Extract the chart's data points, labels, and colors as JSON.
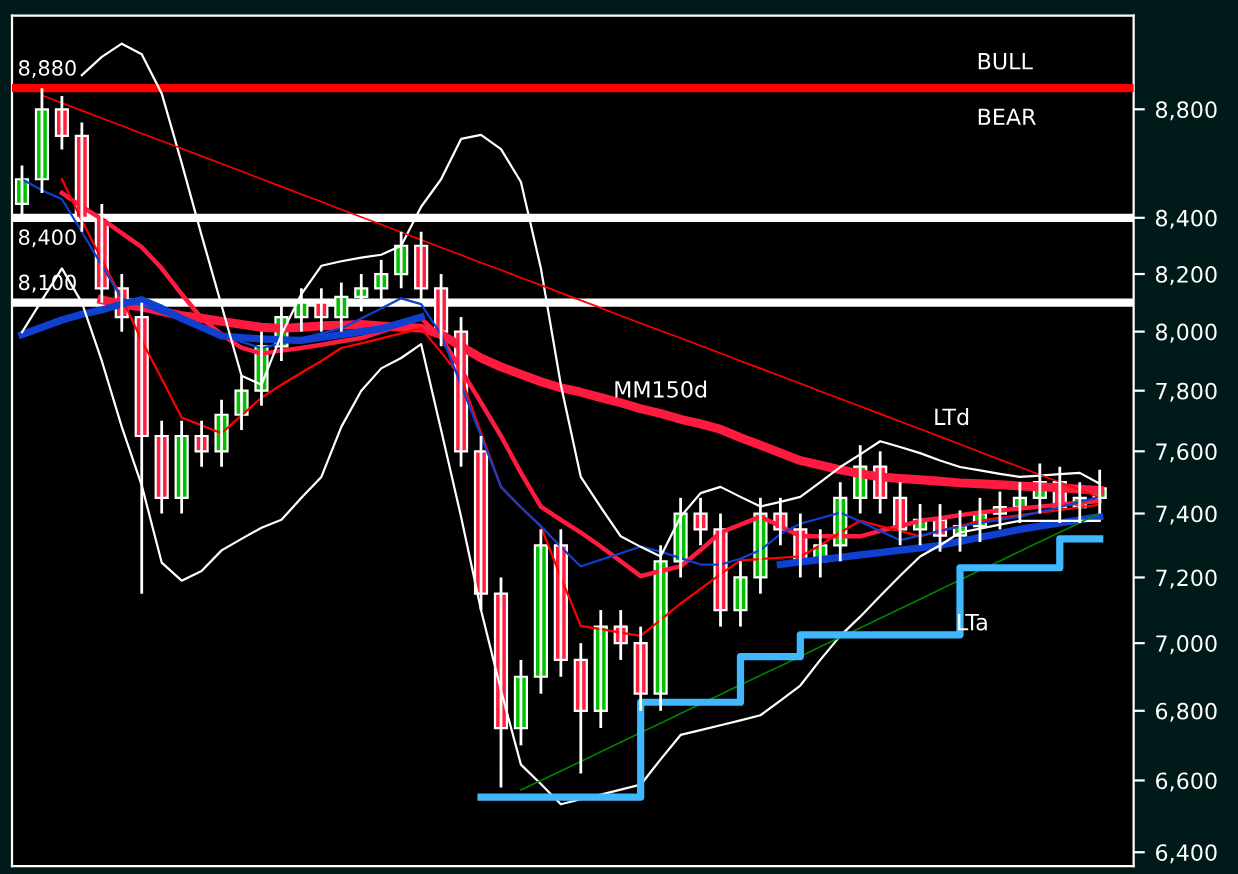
{
  "chart_data": {
    "type": "candlestick",
    "log": "y",
    "grid": false,
    "categories": [
      null,
      null,
      null,
      null,
      null,
      null,
      null,
      null,
      null,
      null,
      null,
      null,
      null,
      null,
      null,
      null,
      null,
      null,
      null,
      null,
      null,
      null,
      null,
      null,
      null,
      null,
      null,
      null,
      null,
      null,
      null,
      null,
      null,
      null,
      null,
      null,
      null,
      null,
      null,
      null,
      null,
      null,
      null,
      null,
      null,
      null,
      null,
      null,
      null,
      null,
      null,
      null,
      null,
      null,
      null
    ],
    "ohlc": [
      [
        8450,
        8590,
        8400,
        8540
      ],
      [
        8540,
        8880,
        8490,
        8800
      ],
      [
        8800,
        8850,
        8650,
        8700
      ],
      [
        8700,
        8750,
        8350,
        8400
      ],
      [
        8400,
        8450,
        8100,
        8150
      ],
      [
        8150,
        8200,
        8000,
        8050
      ],
      [
        8050,
        8100,
        7150,
        7650
      ],
      [
        7650,
        7700,
        7400,
        7450
      ],
      [
        7450,
        7700,
        7400,
        7650
      ],
      [
        7650,
        7700,
        7550,
        7600
      ],
      [
        7600,
        7770,
        7550,
        7720
      ],
      [
        7720,
        7850,
        7670,
        7800
      ],
      [
        7800,
        8000,
        7750,
        7950
      ],
      [
        7950,
        8100,
        7900,
        8050
      ],
      [
        8050,
        8150,
        8000,
        8100
      ],
      [
        8100,
        8150,
        8000,
        8050
      ],
      [
        8050,
        8170,
        8000,
        8120
      ],
      [
        8120,
        8200,
        8070,
        8150
      ],
      [
        8150,
        8250,
        8100,
        8200
      ],
      [
        8200,
        8350,
        8150,
        8300
      ],
      [
        8300,
        8350,
        8100,
        8150
      ],
      [
        8150,
        8200,
        7950,
        8000
      ],
      [
        8000,
        8050,
        7550,
        7600
      ],
      [
        7600,
        7650,
        7100,
        7150
      ],
      [
        7150,
        7200,
        6580,
        6750
      ],
      [
        6750,
        6950,
        6700,
        6900
      ],
      [
        6900,
        7350,
        6850,
        7300
      ],
      [
        7300,
        7350,
        6900,
        6950
      ],
      [
        6950,
        7000,
        6620,
        6800
      ],
      [
        6800,
        7100,
        6750,
        7050
      ],
      [
        7050,
        7100,
        6950,
        7000
      ],
      [
        7000,
        7050,
        6800,
        6850
      ],
      [
        6850,
        7300,
        6800,
        7250
      ],
      [
        7250,
        7450,
        7200,
        7400
      ],
      [
        7400,
        7450,
        7300,
        7350
      ],
      [
        7350,
        7400,
        7050,
        7100
      ],
      [
        7100,
        7250,
        7050,
        7200
      ],
      [
        7200,
        7450,
        7150,
        7400
      ],
      [
        7400,
        7450,
        7300,
        7350
      ],
      [
        7350,
        7400,
        7200,
        7250
      ],
      [
        7250,
        7350,
        7200,
        7300
      ],
      [
        7300,
        7500,
        7250,
        7450
      ],
      [
        7450,
        7620,
        7400,
        7550
      ],
      [
        7550,
        7600,
        7400,
        7450
      ],
      [
        7450,
        7500,
        7300,
        7350
      ],
      [
        7350,
        7430,
        7300,
        7380
      ],
      [
        7380,
        7430,
        7280,
        7330
      ],
      [
        7330,
        7410,
        7280,
        7360
      ],
      [
        7360,
        7450,
        7310,
        7400
      ],
      [
        7400,
        7470,
        7350,
        7420
      ],
      [
        7420,
        7500,
        7370,
        7450
      ],
      [
        7450,
        7560,
        7400,
        7500
      ],
      [
        7500,
        7550,
        7370,
        7420
      ],
      [
        7420,
        7500,
        7370,
        7450
      ],
      [
        7450,
        7540,
        7400,
        7480
      ]
    ],
    "series": [
      {
        "name": "MM150d",
        "type": "line",
        "color": "#ff1a40",
        "values": [
          null,
          null,
          null,
          null,
          8110,
          8095,
          8085,
          8070,
          8055,
          8046,
          8035,
          8025,
          8015,
          8011,
          8015,
          8020,
          8022,
          8025,
          8020,
          8015,
          8012,
          7990,
          7950,
          7910,
          7880,
          7855,
          7830,
          7810,
          7795,
          7777,
          7760,
          7740,
          7724,
          7705,
          7690,
          7672,
          7645,
          7620,
          7595,
          7570,
          7555,
          7540,
          7528,
          7517,
          7512,
          7508,
          7503,
          7498,
          7495,
          7492,
          7488,
          7485,
          7482,
          7478,
          7474
        ]
      },
      {
        "type": "line",
        "color": "#ff1a40",
        "values": [
          null,
          null,
          8490,
          8440,
          8395,
          8345,
          8295,
          8220,
          8130,
          8046,
          7990,
          7945,
          7925,
          7935,
          7944,
          7955,
          7967,
          7978,
          8000,
          8023,
          8046,
          7980,
          7870,
          7760,
          7650,
          7530,
          7422,
          7380,
          7340,
          7296,
          7250,
          7204,
          7220,
          7234,
          7285,
          7340,
          7365,
          7390,
          7360,
          7328,
          7328,
          7328,
          7328,
          7345,
          7360,
          7377,
          7385,
          7395,
          7403,
          7410,
          7416,
          7422,
          7428,
          7434,
          7440
        ]
      },
      {
        "type": "line",
        "color": "#ff0000",
        "values": [
          null,
          null,
          8540,
          8390,
          8250,
          8115,
          7970,
          7840,
          7711,
          7685,
          7659,
          7718,
          7777,
          7820,
          7860,
          7900,
          7944,
          7960,
          7977,
          7994,
          8011,
          7930,
          7844,
          7660,
          7485,
          7420,
          7359,
          7200,
          7052,
          7042,
          7032,
          7022,
          7070,
          7120,
          7165,
          7210,
          7253,
          7257,
          7261,
          7265,
          7300,
          7340,
          7377,
          7360,
          7345,
          7328,
          7345,
          7360,
          7377,
          7386,
          7395,
          7403,
          7411,
          7420,
          7428
        ]
      },
      {
        "type": "line",
        "color": "#1040d0",
        "values": [
          7990,
          8015,
          8040,
          8060,
          8075,
          8095,
          8110,
          8080,
          8045,
          8015,
          7985,
          7980,
          7975,
          7972,
          7970,
          7980,
          7990,
          8000,
          8010,
          8030,
          8050,
          null,
          null,
          null,
          null,
          null,
          null,
          null,
          null,
          null,
          null,
          null,
          null,
          null,
          null,
          null,
          null,
          null,
          7240,
          7248,
          7255,
          7262,
          7270,
          7277,
          7285,
          7292,
          7300,
          7312,
          7325,
          7337,
          7350,
          7360,
          7370,
          7380,
          7390
        ]
      },
      {
        "type": "line",
        "color": "#1040d0",
        "values": [
          8540,
          8500,
          8467,
          8350,
          8230,
          8115,
          8090,
          8065,
          8040,
          8015,
          7990,
          7965,
          7944,
          7960,
          7977,
          7994,
          8011,
          8045,
          8080,
          8115,
          8095,
          7990,
          7820,
          7650,
          7485,
          7420,
          7360,
          7295,
          7234,
          7255,
          7275,
          7296,
          7280,
          7260,
          7240,
          7240,
          7258,
          7285,
          7335,
          7368,
          7385,
          7403,
          7375,
          7345,
          7316,
          7330,
          7345,
          7359,
          7370,
          7380,
          7390,
          7405,
          7420,
          7437,
          7453
        ]
      },
      {
        "type": "line",
        "color": "#ffffff",
        "values": [
          null,
          null,
          null,
          8930,
          9000,
          9051,
          9010,
          8860,
          8600,
          8337,
          8090,
          7850,
          7820,
          7990,
          8130,
          8229,
          8245,
          8258,
          8268,
          8300,
          8440,
          8540,
          8689,
          8704,
          8651,
          8530,
          8220,
          7820,
          7517,
          7420,
          7328,
          7295,
          7265,
          7390,
          7465,
          7485,
          7453,
          7422,
          7437,
          7453,
          7500,
          7549,
          7590,
          7633,
          7614,
          7594,
          7570,
          7549,
          7538,
          7527,
          7517,
          7521,
          7526,
          7530,
          7495
        ]
      },
      {
        "type": "line",
        "color": "#ffffff",
        "values": [
          7998,
          8109,
          8220,
          8100,
          7900,
          7680,
          7490,
          7246,
          7190,
          7220,
          7284,
          7320,
          7355,
          7380,
          7450,
          7517,
          7680,
          7800,
          7875,
          7910,
          7957,
          7670,
          7390,
          7100,
          6860,
          6645,
          6590,
          6533,
          6547,
          6560,
          6574,
          6588,
          6660,
          6730,
          6744,
          6758,
          6772,
          6787,
          6830,
          6874,
          6950,
          7022,
          7080,
          7143,
          7205,
          7265,
          7300,
          7340,
          7352,
          7365,
          7377,
          7377,
          7377,
          7377,
          7377
        ]
      },
      {
        "name": "LTd",
        "type": "line",
        "color": "#ff0000",
        "values": [
          null,
          8853,
          8824,
          8795,
          8766,
          8738,
          8709,
          8681,
          8653,
          8625,
          8597,
          8569,
          8541,
          8513,
          8485,
          8458,
          8430,
          8403,
          8376,
          8348,
          8321,
          8294,
          8267,
          8240,
          8214,
          8187,
          8161,
          8134,
          8108,
          8082,
          8055,
          8029,
          8003,
          7978,
          7952,
          7926,
          7900,
          7875,
          7849,
          7824,
          7798,
          7773,
          7748,
          7723,
          7698,
          7673,
          7648,
          7623,
          7598,
          7573,
          7549,
          7524,
          7500,
          7475,
          7451
        ]
      },
      {
        "name": "LTa",
        "type": "line",
        "color": "#008000",
        "values": [
          null,
          null,
          null,
          null,
          null,
          null,
          null,
          null,
          null,
          null,
          null,
          null,
          null,
          null,
          null,
          null,
          null,
          null,
          null,
          null,
          null,
          null,
          null,
          null,
          null,
          6573,
          6600,
          6627,
          6654,
          6682,
          6709,
          6737,
          6764,
          6792,
          6820,
          6848,
          6876,
          6904,
          6932,
          6960,
          6989,
          7018,
          7046,
          7075,
          7104,
          7133,
          7163,
          7192,
          7222,
          7251,
          7281,
          7311,
          7341,
          7371,
          7401
        ]
      },
      {
        "type": "step",
        "color": "#40b8ff",
        "values": [
          null,
          null,
          null,
          null,
          null,
          null,
          null,
          null,
          null,
          null,
          null,
          null,
          null,
          null,
          null,
          null,
          null,
          null,
          null,
          null,
          null,
          null,
          null,
          6553,
          6553,
          6553,
          6553,
          6553,
          6553,
          6553,
          6553,
          6825,
          6825,
          6825,
          6825,
          6825,
          6960,
          6960,
          6960,
          7025,
          7025,
          7025,
          7025,
          7025,
          7025,
          7025,
          7025,
          7230,
          7230,
          7230,
          7230,
          7230,
          7320,
          7320,
          7320
        ]
      }
    ],
    "ylim": [
      6362,
      9160
    ],
    "yticks": [
      {
        "value": 8800,
        "label": "8,800"
      },
      {
        "value": 8400,
        "label": "8,400"
      },
      {
        "value": 8200,
        "label": "8,200"
      },
      {
        "value": 8000,
        "label": "8,000"
      },
      {
        "value": 7800,
        "label": "7,800"
      },
      {
        "value": 7600,
        "label": "7,600"
      },
      {
        "value": 7400,
        "label": "7,400"
      },
      {
        "value": 7200,
        "label": "7,200"
      },
      {
        "value": 7000,
        "label": "7,000"
      },
      {
        "value": 6800,
        "label": "6,800"
      },
      {
        "value": 6600,
        "label": "6,600"
      },
      {
        "value": 6400,
        "label": "6,400"
      }
    ],
    "ref_lines": [
      {
        "axis": "y",
        "value": 8880,
        "label": "8,880",
        "color": "#ff0000"
      },
      {
        "axis": "y",
        "value": 8400,
        "label": "8,400",
        "color": "#ffffff"
      },
      {
        "axis": "y",
        "value": 8100,
        "label": "8,100",
        "color": "#ffffff"
      }
    ],
    "annotations": [
      "BULL",
      "BEAR"
    ],
    "legend": false
  }
}
